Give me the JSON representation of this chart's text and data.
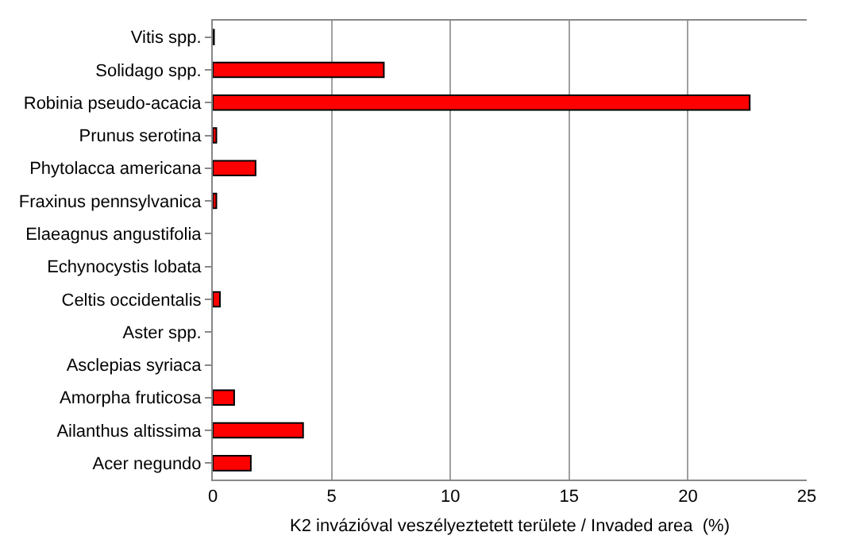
{
  "chart_data": {
    "type": "bar",
    "orientation": "horizontal",
    "categories": [
      "Vitis spp.",
      "Solidago spp.",
      "Robinia pseudo-acacia",
      "Prunus serotina",
      "Phytolacca americana",
      "Fraxinus pennsylvanica",
      "Elaeagnus angustifolia",
      "Echynocystis lobata",
      "Celtis occidentalis",
      "Aster spp.",
      "Asclepias syriaca",
      "Amorpha fruticosa",
      "Ailanthus altissima",
      "Acer negundo"
    ],
    "values": [
      0.05,
      7.2,
      22.6,
      0.15,
      1.8,
      0.15,
      0,
      0,
      0.3,
      0,
      0,
      0.9,
      3.8,
      1.6
    ],
    "color": "#ff0000",
    "xlabel": "K2 invázióval veszélyeztetett területe / Invaded area  (%)",
    "xlim": [
      0,
      25
    ],
    "xticks": [
      0,
      5,
      10,
      15,
      20,
      25
    ],
    "grid": "x"
  }
}
